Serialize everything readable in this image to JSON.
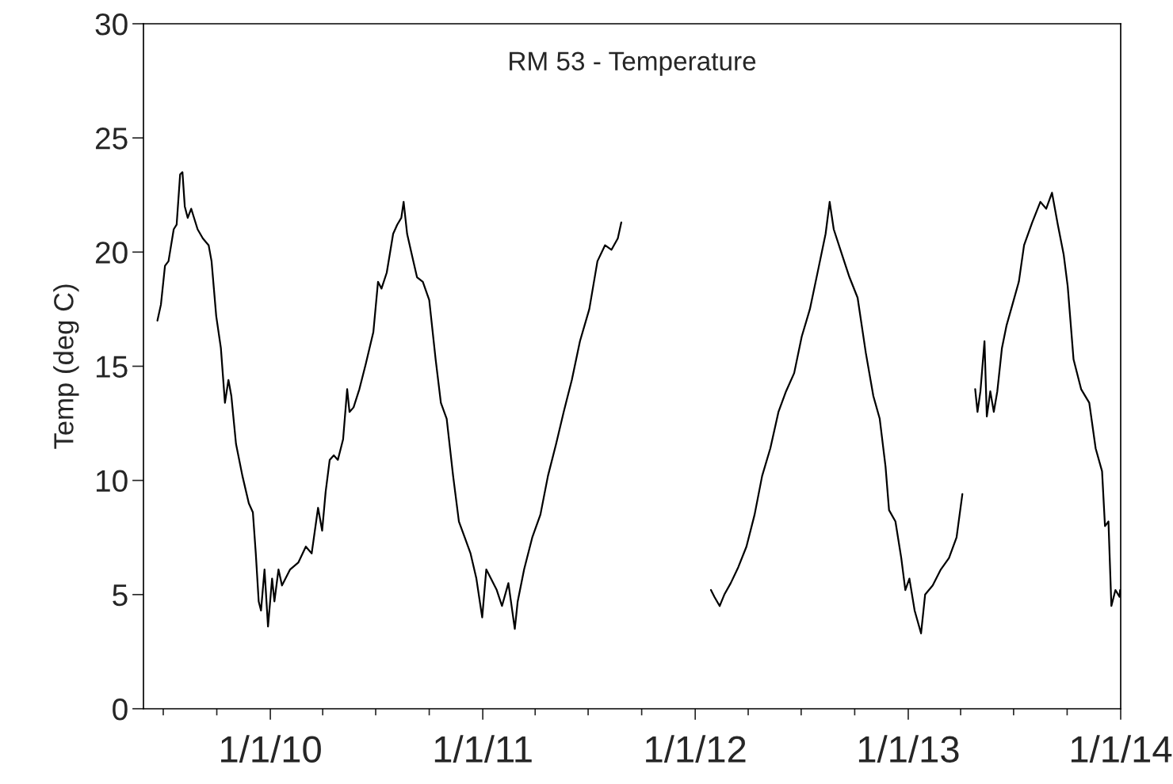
{
  "chart_data": {
    "type": "line",
    "title": "RM 53 - Temperature",
    "ylabel": "Temp (deg C)",
    "xlim": [
      "2009-05-28",
      "2014-01-01"
    ],
    "xticks": [
      {
        "value": "2009-07-01",
        "label": null
      },
      {
        "value": "2009-10-01",
        "label": null
      },
      {
        "value": "2010-01-01",
        "label": "1/1/10"
      },
      {
        "value": "2010-04-01",
        "label": null
      },
      {
        "value": "2010-07-01",
        "label": null
      },
      {
        "value": "2010-10-01",
        "label": null
      },
      {
        "value": "2011-01-01",
        "label": "1/1/11"
      },
      {
        "value": "2011-04-01",
        "label": null
      },
      {
        "value": "2011-07-01",
        "label": null
      },
      {
        "value": "2011-10-01",
        "label": null
      },
      {
        "value": "2012-01-01",
        "label": "1/1/12"
      },
      {
        "value": "2012-04-01",
        "label": null
      },
      {
        "value": "2012-07-01",
        "label": null
      },
      {
        "value": "2012-10-01",
        "label": null
      },
      {
        "value": "2013-01-01",
        "label": "1/1/13"
      },
      {
        "value": "2013-04-01",
        "label": null
      },
      {
        "value": "2013-07-01",
        "label": null
      },
      {
        "value": "2013-10-01",
        "label": null
      },
      {
        "value": "2014-01-01",
        "label": "1/1/14"
      }
    ],
    "ylim": [
      0,
      30
    ],
    "yticks": [
      0,
      5,
      10,
      15,
      20,
      25,
      30
    ],
    "grid": false,
    "legend": false,
    "marker": "none",
    "line_style": "solid",
    "series": [
      {
        "color": "#000000",
        "x": [
          "2009-06-21",
          "2009-06-27",
          "2009-07-04",
          "2009-07-10",
          "2009-07-19",
          "2009-07-24",
          "2009-07-30",
          "2009-08-03",
          "2009-08-07",
          "2009-08-12",
          "2009-08-18",
          "2009-08-29",
          "2009-09-07",
          "2009-09-17",
          "2009-09-22",
          "2009-09-30",
          "2009-10-08",
          "2009-10-15",
          "2009-10-21",
          "2009-10-26",
          "2009-11-03",
          "2009-11-14",
          "2009-11-25",
          "2009-12-02",
          "2009-12-07",
          "2009-12-12",
          "2009-12-16",
          "2009-12-22",
          "2009-12-28",
          "2010-01-04",
          "2010-01-08",
          "2010-01-15",
          "2010-01-21",
          "2010-02-04",
          "2010-02-18",
          "2010-03-03",
          "2010-03-13",
          "2010-03-24",
          "2010-03-31",
          "2010-04-06",
          "2010-04-13",
          "2010-04-20",
          "2010-04-27",
          "2010-05-06",
          "2010-05-13",
          "2010-05-17",
          "2010-05-24",
          "2010-06-03",
          "2010-06-14",
          "2010-06-27",
          "2010-07-05",
          "2010-07-11",
          "2010-07-20",
          "2010-07-31",
          "2010-08-07",
          "2010-08-14",
          "2010-08-18",
          "2010-08-24",
          "2010-09-01",
          "2010-09-10",
          "2010-09-20",
          "2010-10-01",
          "2010-10-12",
          "2010-10-21",
          "2010-10-31",
          "2010-11-11",
          "2010-11-21",
          "2010-12-01",
          "2010-12-11",
          "2010-12-21",
          "2010-12-31",
          "2011-01-07",
          "2011-01-15",
          "2011-01-25",
          "2011-02-03",
          "2011-02-14",
          "2011-02-25",
          "2011-03-02",
          "2011-03-13",
          "2011-03-27",
          "2011-04-10",
          "2011-04-23",
          "2011-05-07",
          "2011-05-20",
          "2011-06-03",
          "2011-06-17",
          "2011-07-03",
          "2011-07-17",
          "2011-07-30",
          "2011-08-10",
          "2011-08-21",
          "2011-08-27",
          "2011-10-15",
          "2012-01-28",
          "2012-02-03",
          "2012-02-12",
          "2012-02-20",
          "2012-03-02",
          "2012-03-15",
          "2012-03-29",
          "2012-04-12",
          "2012-04-25",
          "2012-05-09",
          "2012-05-23",
          "2012-06-05",
          "2012-06-19",
          "2012-07-02",
          "2012-07-16",
          "2012-07-30",
          "2012-08-12",
          "2012-08-19",
          "2012-08-26",
          "2012-09-09",
          "2012-09-22",
          "2012-10-06",
          "2012-10-20",
          "2012-11-02",
          "2012-11-13",
          "2012-11-23",
          "2012-11-29",
          "2012-12-10",
          "2012-12-20",
          "2012-12-27",
          "2013-01-03",
          "2013-01-12",
          "2013-01-23",
          "2013-01-30",
          "2013-02-12",
          "2013-02-26",
          "2013-03-12",
          "2013-03-25",
          "2013-04-04",
          "2013-04-15",
          "2013-04-26",
          "2013-04-30",
          "2013-05-05",
          "2013-05-12",
          "2013-05-16",
          "2013-05-22",
          "2013-05-28",
          "2013-06-03",
          "2013-06-11",
          "2013-06-19",
          "2013-06-29",
          "2013-07-10",
          "2013-07-19",
          "2013-08-02",
          "2013-08-16",
          "2013-08-26",
          "2013-09-05",
          "2013-09-15",
          "2013-09-25",
          "2013-10-02",
          "2013-10-12",
          "2013-10-25",
          "2013-11-08",
          "2013-11-19",
          "2013-11-30",
          "2013-12-05",
          "2013-12-11",
          "2013-12-16",
          "2013-12-23",
          "2013-12-30",
          "2013-12-31"
        ],
        "values": [
          17.0,
          17.7,
          19.4,
          19.6,
          21.0,
          21.2,
          23.4,
          23.5,
          22.0,
          21.5,
          21.9,
          21.0,
          20.6,
          20.3,
          19.6,
          17.2,
          15.8,
          13.4,
          14.4,
          13.7,
          11.6,
          10.2,
          9.0,
          8.6,
          6.8,
          4.7,
          4.3,
          6.1,
          3.6,
          5.7,
          4.7,
          6.1,
          5.4,
          6.1,
          6.4,
          7.1,
          6.8,
          8.8,
          7.8,
          9.5,
          10.9,
          11.1,
          10.9,
          11.8,
          14.0,
          13.0,
          13.2,
          14.0,
          15.1,
          16.5,
          18.7,
          18.4,
          19.1,
          20.8,
          21.2,
          21.5,
          22.2,
          20.8,
          19.9,
          18.9,
          18.7,
          17.9,
          15.3,
          13.4,
          12.7,
          10.2,
          8.2,
          7.5,
          6.8,
          5.7,
          4.0,
          6.1,
          5.7,
          5.2,
          4.5,
          5.5,
          3.5,
          4.7,
          6.1,
          7.5,
          8.5,
          10.2,
          11.6,
          13.0,
          14.4,
          16.1,
          17.5,
          19.6,
          20.3,
          20.1,
          20.6,
          21.3,
          null,
          5.2,
          4.9,
          4.5,
          5.0,
          5.5,
          6.2,
          7.1,
          8.5,
          10.2,
          11.4,
          13.0,
          13.9,
          14.7,
          16.3,
          17.5,
          19.2,
          20.8,
          22.2,
          21.0,
          19.9,
          18.9,
          18.0,
          15.6,
          13.7,
          12.7,
          10.6,
          8.7,
          8.2,
          6.6,
          5.2,
          5.7,
          4.3,
          3.3,
          5.0,
          5.4,
          6.1,
          6.6,
          7.5,
          9.4,
          null,
          14.0,
          13.0,
          13.9,
          16.1,
          12.8,
          13.9,
          13.0,
          13.9,
          15.8,
          16.8,
          17.7,
          18.7,
          20.3,
          21.3,
          22.2,
          21.9,
          22.6,
          21.2,
          19.9,
          18.5,
          15.3,
          14.0,
          13.4,
          11.4,
          10.4,
          8.0,
          8.2,
          4.5,
          5.2,
          4.9,
          5.2
        ]
      }
    ]
  }
}
